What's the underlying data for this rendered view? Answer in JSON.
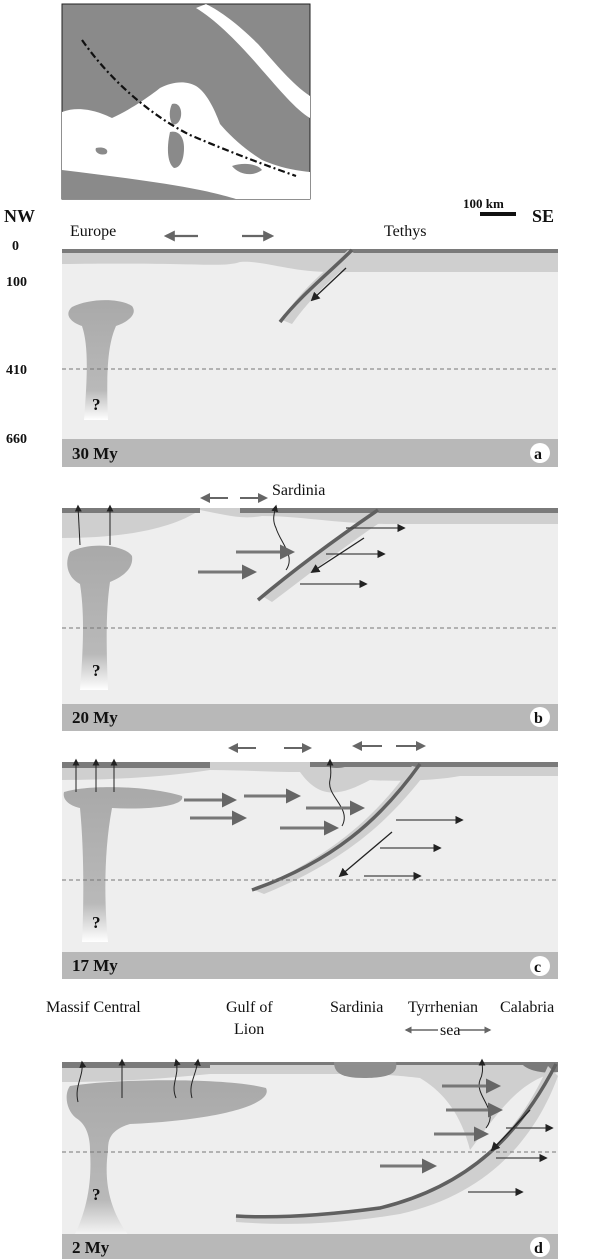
{
  "map": {
    "icon": "mediterranean-map-inset"
  },
  "labels": {
    "nw": "NW",
    "se": "SE",
    "scale": "100 km",
    "depths": [
      "0",
      "100",
      "410",
      "660"
    ],
    "question": "?",
    "europe": "Europe",
    "tethys": "Tethys",
    "sardinia": "Sardinia",
    "massif_central": "Massif Central",
    "gulf_of_lion_1": "Gulf of",
    "gulf_of_lion_2": "Lion",
    "tyrrhenian_1": "Tyrrhenian",
    "tyrrhenian_2": "sea",
    "calabria": "Calabria"
  },
  "panels": [
    {
      "letter": "a",
      "age": "30 My"
    },
    {
      "letter": "b",
      "age": "20  My"
    },
    {
      "letter": "c",
      "age": "17 My"
    },
    {
      "letter": "d",
      "age": "2  My"
    }
  ],
  "colors": {
    "mantle": "#eeeeee",
    "lithosphere": "#cfcfcf",
    "crust": "#7a7a7a",
    "plume": "#a9a9a9",
    "slab": "#606060",
    "bar": "#b8b8b8",
    "arrow": "#707070"
  }
}
